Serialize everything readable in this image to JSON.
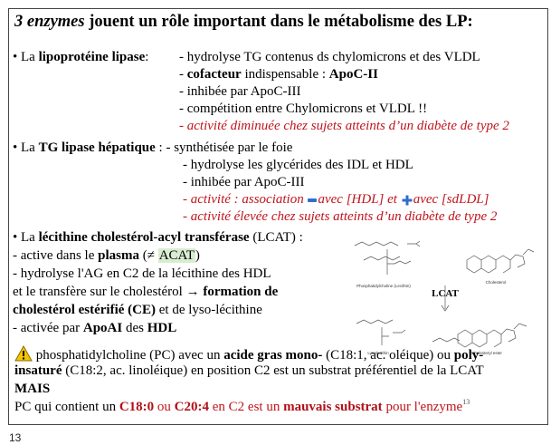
{
  "title": {
    "enzymes": "3 enzymes",
    "rest": " jouent un rôle important dans le métabolisme des LP:"
  },
  "lpl": {
    "bullet": "•",
    "prefix": " La ",
    "name": "lipoprotéine lipase",
    "colon": ":",
    "l1": "- hydrolyse TG contenus ds chylomicrons et des VLDL",
    "l2_dash": "- ",
    "l2_b1": "cofacteur",
    "l2_mid": " indispensable : ",
    "l2_b2": "ApoC-II",
    "l3": "- inhibée par ApoC-III",
    "l4": "- compétition entre Chylomicrons et VLDL !!",
    "l5": "- activité diminuée chez sujets atteints d’un diabète de type 2"
  },
  "tgl": {
    "bullet": "•",
    "prefix": "  La ",
    "name": "TG lipase hépatique",
    "suffix": " : - synthétisée par le foie",
    "l2": "- hydrolyse les glycérides des IDL et HDL",
    "l3": "- inhibée par ApoC-III",
    "l4_a": "- activité : association ",
    "l4_b": "avec [HDL] et ",
    "l4_c": "avec [sdLDL]",
    "l5": "- activité élevée chez sujets atteints d’un diabète de type 2"
  },
  "lcat": {
    "bullet": "•",
    "prefix": " La ",
    "name": "lécithine cholestérol-acyl transférase",
    "suffix": " (LCAT) :",
    "l1_a": "- active dans le ",
    "l1_b": "plasma",
    "l1_c": " (≠ ",
    "l1_d": "ACAT",
    "l1_e": ")",
    "l2": "- hydrolyse l'AG en C2 de la lécithine des HDL",
    "l3_a": " et le transfère sur le cholestérol → ",
    "l3_b": "formation  de",
    "l4_a": "cholestérol estérifié (CE)",
    "l4_b": " et de lyso-lécithine",
    "l5_a": "- activée par ",
    "l5_b": "ApoAI",
    "l5_c": " des ",
    "l5_d": "HDL"
  },
  "diagram": {
    "enzyme_label": "LCAT",
    "caption_top_left": "Phosphatidylcholine (Lecithin)",
    "caption_top_right": "Cholesterol",
    "caption_bottom_left": "Lysolecithin",
    "caption_bottom_right": "Cholesteryl ester"
  },
  "note": {
    "icon": "warning-icon",
    "p1": " phosphatidylcholine (PC) avec un ",
    "p1_b": "acide gras mono-",
    "p1_c": " (C18:1, ac. oléique) ou ",
    "p1_d": "poly-",
    "p2_b": "insaturé",
    "p2_c": " (C18:2, ac. linoléique) en position C2 est un substrat préférentiel de la LCAT",
    "p3": "MAIS",
    "p4_a": "PC qui contient un ",
    "p4_b": "C18:0",
    "p4_c": " ou ",
    "p4_d": "C20:4",
    "p4_e": " en C2 est un ",
    "p4_f": "mauvais substrat",
    "p4_g": " pour l'enzyme",
    "sup": "13"
  },
  "page_number": "13",
  "colors": {
    "red": "#c0141c",
    "blue": "#2f6fc9",
    "highlight": "#d8ecd2",
    "warning": "#f5c400"
  }
}
